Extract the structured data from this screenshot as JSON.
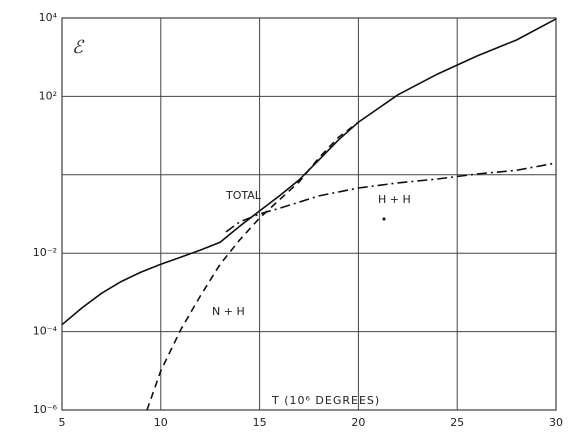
{
  "chart_data": {
    "type": "line",
    "y_label": "ℰ",
    "x_label": "T (10⁶ DEGREES)",
    "xlim": [
      5,
      30
    ],
    "xticks": [
      5,
      10,
      15,
      20,
      25,
      30
    ],
    "ylim": [
      1e-06,
      10000
    ],
    "ylog": true,
    "yticks": [
      {
        "value": 10000,
        "label": "10⁴"
      },
      {
        "value": 100,
        "label": "10²"
      },
      {
        "value": 1,
        "label": null
      },
      {
        "value": 0.01,
        "label": "10⁻²"
      },
      {
        "value": 0.0001,
        "label": "10⁻⁴"
      },
      {
        "value": 1e-06,
        "label": "10⁻⁶"
      }
    ],
    "grid": true,
    "series": [
      {
        "name": "TOTAL",
        "color": "#111111",
        "style": "solid",
        "x": [
          5,
          6,
          7,
          8,
          9,
          10,
          11,
          12,
          13,
          14,
          15,
          16,
          17,
          18,
          19,
          20,
          22,
          24,
          26,
          28,
          30
        ],
        "values": [
          0.00015,
          0.0004,
          0.00095,
          0.0019,
          0.0033,
          0.0052,
          0.0079,
          0.012,
          0.019,
          0.049,
          0.12,
          0.29,
          0.74,
          2.4,
          7.8,
          22,
          110,
          370,
          1070,
          2750,
          9500
        ]
      },
      {
        "name": "N + H",
        "color": "#111111",
        "style": "dashed",
        "x": [
          9.3,
          10,
          11,
          12,
          13,
          14,
          15,
          16,
          17,
          18,
          19,
          20
        ],
        "values": [
          1e-06,
          1e-05,
          0.00011,
          0.00081,
          0.0052,
          0.022,
          0.079,
          0.23,
          0.66,
          2.7,
          9.1,
          22
        ]
      },
      {
        "name": "H + H",
        "color": "#111111",
        "style": "dash-dot",
        "x": [
          13.3,
          14,
          15,
          16,
          17,
          18,
          20,
          22,
          24,
          26,
          28,
          30
        ],
        "values": [
          0.035,
          0.063,
          0.1,
          0.14,
          0.2,
          0.29,
          0.46,
          0.62,
          0.78,
          1.05,
          1.3,
          2.0
        ]
      }
    ]
  }
}
